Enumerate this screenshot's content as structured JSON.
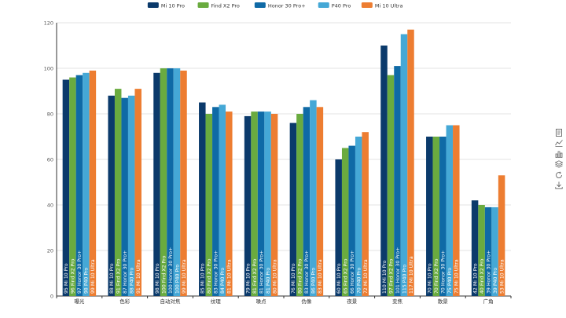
{
  "chart_data": {
    "type": "bar",
    "title": "",
    "xlabel": "",
    "ylabel": "",
    "ylim": [
      0,
      120
    ],
    "yticks": [
      0,
      20,
      40,
      60,
      80,
      100,
      120
    ],
    "grid": true,
    "legend_position": "top-center",
    "categories": [
      "曝光",
      "色彩",
      "自动对焦",
      "纹理",
      "噪点",
      "伪像",
      "夜景",
      "变焦",
      "散景",
      "广角"
    ],
    "series": [
      {
        "name": "Mi 10 Pro",
        "color": "#0b3a6b",
        "values": [
          95,
          88,
          98,
          85,
          79,
          76,
          60,
          110,
          70,
          42
        ]
      },
      {
        "name": "Find X2 Pro",
        "color": "#6aab3f",
        "values": [
          96,
          91,
          100,
          80,
          81,
          80,
          65,
          97,
          70,
          40
        ]
      },
      {
        "name": "Honor 30 Pro+",
        "color": "#0f6aa6",
        "values": [
          97,
          87,
          100,
          83,
          81,
          83,
          66,
          101,
          70,
          39
        ]
      },
      {
        "name": "P40 Pro",
        "color": "#45a8d6",
        "values": [
          98,
          88,
          100,
          84,
          81,
          86,
          70,
          115,
          75,
          39
        ]
      },
      {
        "name": "Mi 10 Ultra",
        "color": "#ed7d31",
        "values": [
          99,
          91,
          99,
          81,
          80,
          83,
          72,
          117,
          75,
          53
        ]
      }
    ]
  },
  "toolbox": [
    {
      "icon": "data-view-icon"
    },
    {
      "icon": "line-chart-icon"
    },
    {
      "icon": "bar-chart-icon"
    },
    {
      "icon": "stack-icon"
    },
    {
      "icon": "restore-icon"
    },
    {
      "icon": "download-icon"
    }
  ]
}
